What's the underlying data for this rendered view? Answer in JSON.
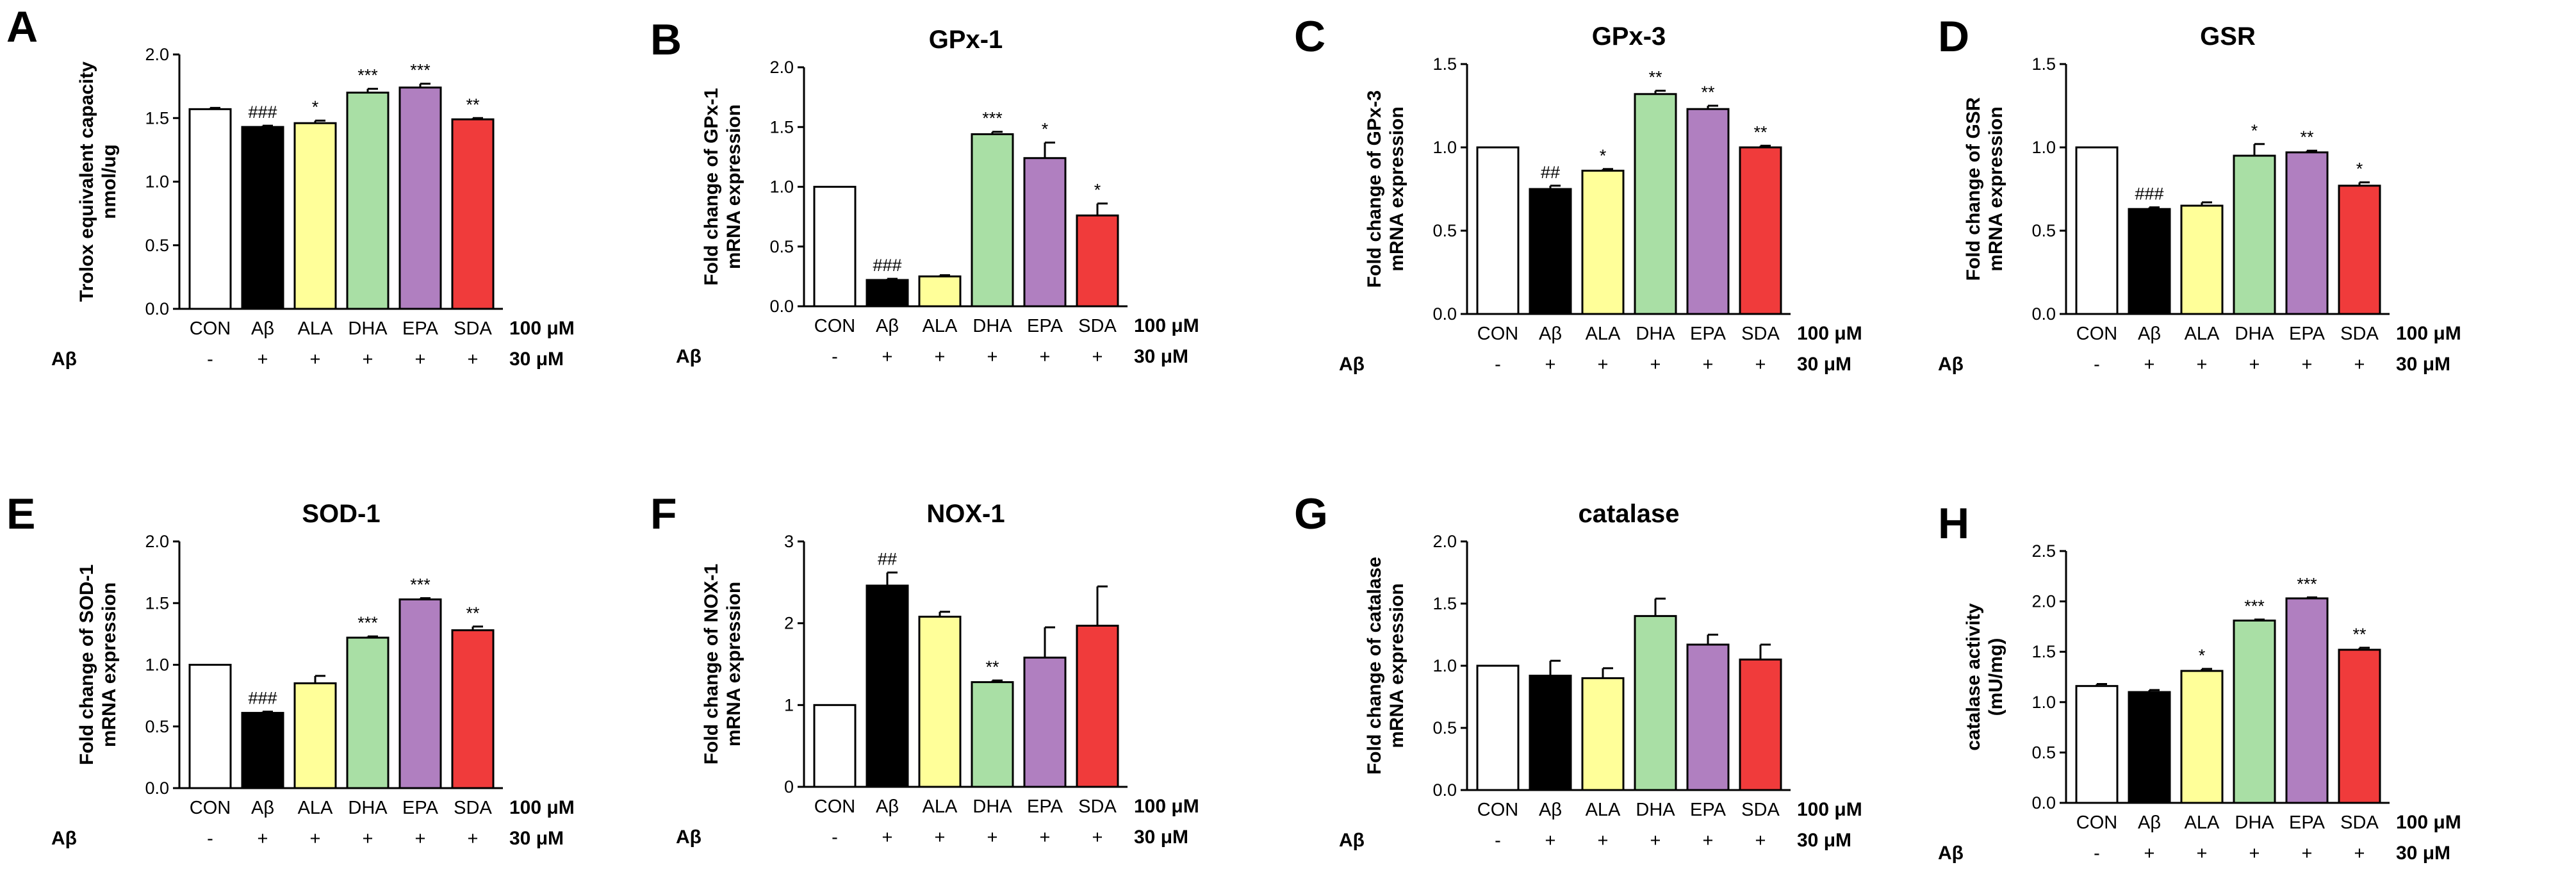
{
  "figure": {
    "categories": [
      "CON",
      "Aβ",
      "ALA",
      "DHA",
      "EPA",
      "SDA"
    ],
    "colors": [
      "#ffffff",
      "#000000",
      "#ffff99",
      "#a9dfa5",
      "#b07fc0",
      "#f03b3b"
    ],
    "treatment_label": "100 μM",
    "abeta_row": {
      "label": "Aβ",
      "signs": [
        "-",
        "+",
        "+",
        "+",
        "+",
        "+"
      ],
      "dose": "30 μM"
    }
  },
  "chart_data": [
    {
      "panel": "A",
      "type": "bar",
      "title": "",
      "ylabel": [
        "Trolox equivalent capacity",
        "nmol/ug"
      ],
      "ylim": [
        0,
        2.0
      ],
      "ticks": [
        "0.0",
        "0.5",
        "1.0",
        "1.5",
        "2.0"
      ],
      "values": [
        1.57,
        1.43,
        1.46,
        1.7,
        1.74,
        1.49
      ],
      "errors": [
        0.01,
        0.01,
        0.02,
        0.03,
        0.03,
        0.01
      ],
      "annotations": [
        "",
        "###",
        "*",
        "***",
        "***",
        "**"
      ]
    },
    {
      "panel": "B",
      "type": "bar",
      "title": "GPx-1",
      "ylabel": [
        "Fold change of GPx-1",
        "mRNA expression"
      ],
      "ylim": [
        0,
        2.0
      ],
      "ticks": [
        "0.0",
        "0.5",
        "1.0",
        "1.5",
        "2.0"
      ],
      "values": [
        1.0,
        0.22,
        0.25,
        1.44,
        1.24,
        0.76
      ],
      "errors": [
        0,
        0.01,
        0.01,
        0.02,
        0.13,
        0.1
      ],
      "annotations": [
        "",
        "###",
        "",
        "***",
        "*",
        "*"
      ]
    },
    {
      "panel": "C",
      "type": "bar",
      "title": "GPx-3",
      "ylabel": [
        "Fold change of GPx-3",
        "mRNA expression"
      ],
      "ylim": [
        0,
        1.5
      ],
      "ticks": [
        "0.0",
        "0.5",
        "1.0",
        "1.5"
      ],
      "values": [
        1.0,
        0.75,
        0.86,
        1.32,
        1.23,
        1.0
      ],
      "errors": [
        0,
        0.02,
        0.01,
        0.02,
        0.02,
        0.01
      ],
      "annotations": [
        "",
        "##",
        "*",
        "**",
        "**",
        "**"
      ]
    },
    {
      "panel": "D",
      "type": "bar",
      "title": "GSR",
      "ylabel": [
        "Fold change of GSR",
        "mRNA expression"
      ],
      "ylim": [
        0,
        1.5
      ],
      "ticks": [
        "0.0",
        "0.5",
        "1.0",
        "1.5"
      ],
      "values": [
        1.0,
        0.63,
        0.65,
        0.95,
        0.97,
        0.77
      ],
      "errors": [
        0,
        0.01,
        0.02,
        0.07,
        0.01,
        0.02
      ],
      "annotations": [
        "",
        "###",
        "",
        "*",
        "**",
        "*"
      ]
    },
    {
      "panel": "E",
      "type": "bar",
      "title": "SOD-1",
      "ylabel": [
        "Fold change of SOD-1",
        "mRNA expression"
      ],
      "ylim": [
        0,
        2.0
      ],
      "ticks": [
        "0.0",
        "0.5",
        "1.0",
        "1.5",
        "2.0"
      ],
      "values": [
        1.0,
        0.61,
        0.85,
        1.22,
        1.53,
        1.28
      ],
      "errors": [
        0,
        0.01,
        0.06,
        0.01,
        0.01,
        0.03
      ],
      "annotations": [
        "",
        "###",
        "",
        "***",
        "***",
        "**"
      ]
    },
    {
      "panel": "F",
      "type": "bar",
      "title": "NOX-1",
      "ylabel": [
        "Fold change of NOX-1",
        "mRNA expression"
      ],
      "ylim": [
        0,
        3
      ],
      "ticks": [
        "0",
        "1",
        "2",
        "3"
      ],
      "values": [
        1.0,
        2.46,
        2.08,
        1.28,
        1.58,
        1.97
      ],
      "errors": [
        0,
        0.16,
        0.06,
        0.02,
        0.37,
        0.48
      ],
      "annotations": [
        "",
        "##",
        "",
        "**",
        "",
        ""
      ]
    },
    {
      "panel": "G",
      "type": "bar",
      "title": "catalase",
      "ylabel": [
        "Fold change of catalase",
        "mRNA expression"
      ],
      "ylim": [
        0,
        2.0
      ],
      "ticks": [
        "0.0",
        "0.5",
        "1.0",
        "1.5",
        "2.0"
      ],
      "values": [
        1.0,
        0.92,
        0.9,
        1.4,
        1.17,
        1.05
      ],
      "errors": [
        0,
        0.12,
        0.08,
        0.14,
        0.08,
        0.12
      ],
      "annotations": [
        "",
        "",
        "",
        "",
        "",
        ""
      ]
    },
    {
      "panel": "H",
      "type": "bar",
      "title": "",
      "ylabel": [
        "catalase activity",
        "(mU/mg)"
      ],
      "ylim": [
        0,
        2.5
      ],
      "ticks": [
        "0.0",
        "0.5",
        "1.0",
        "1.5",
        "2.0",
        "2.5"
      ],
      "values": [
        1.16,
        1.1,
        1.31,
        1.81,
        2.03,
        1.52
      ],
      "errors": [
        0.02,
        0.02,
        0.02,
        0.01,
        0.01,
        0.02
      ],
      "annotations": [
        "",
        "",
        "*",
        "***",
        "***",
        "**"
      ]
    }
  ]
}
